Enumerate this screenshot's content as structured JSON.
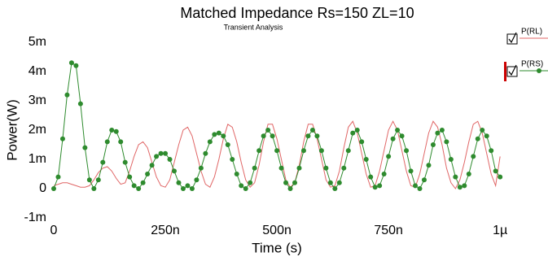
{
  "chart_data": {
    "type": "line",
    "title": "Matched Impedance Rs=150 ZL=10",
    "subtitle": "Transient Analysis",
    "x_label": "Time (s)",
    "y_label": "Power(W)",
    "xlim": [
      0,
      1.007e-06
    ],
    "ylim": [
      -0.0012,
      0.0053
    ],
    "xticks": [
      {
        "value": 0,
        "label": "0"
      },
      {
        "value": 2.5e-07,
        "label": "250n"
      },
      {
        "value": 5e-07,
        "label": "500n"
      },
      {
        "value": 7.5e-07,
        "label": "750n"
      },
      {
        "value": 1e-06,
        "label": "1µ"
      }
    ],
    "yticks": [
      {
        "value": -0.001,
        "label": "-1m"
      },
      {
        "value": 0,
        "label": "0"
      },
      {
        "value": 0.001,
        "label": "1m"
      },
      {
        "value": 0.002,
        "label": "2m"
      },
      {
        "value": 0.003,
        "label": "3m"
      },
      {
        "value": 0.004,
        "label": "4m"
      },
      {
        "value": 0.005,
        "label": "5m"
      }
    ],
    "grid": false,
    "legend": "right",
    "x": [
      0,
      1e-08,
      2e-08,
      3e-08,
      4e-08,
      5e-08,
      6e-08,
      7e-08,
      8e-08,
      9e-08,
      1e-07,
      1.1e-07,
      1.2e-07,
      1.3e-07,
      1.4e-07,
      1.5e-07,
      1.6e-07,
      1.7e-07,
      1.8e-07,
      1.9e-07,
      2e-07,
      2.1e-07,
      2.2e-07,
      2.3e-07,
      2.4e-07,
      2.5e-07,
      2.6e-07,
      2.7e-07,
      2.8e-07,
      2.9e-07,
      3e-07,
      3.1e-07,
      3.2e-07,
      3.3e-07,
      3.4e-07,
      3.5e-07,
      3.6e-07,
      3.7e-07,
      3.8e-07,
      3.9e-07,
      4e-07,
      4.1e-07,
      4.2e-07,
      4.3e-07,
      4.4e-07,
      4.5e-07,
      4.6e-07,
      4.7e-07,
      4.8e-07,
      4.9e-07,
      5e-07,
      5.1e-07,
      5.2e-07,
      5.3e-07,
      5.4e-07,
      5.5e-07,
      5.6e-07,
      5.7e-07,
      5.8e-07,
      5.9e-07,
      6e-07,
      6.1e-07,
      6.2e-07,
      6.3e-07,
      6.4e-07,
      6.5e-07,
      6.6e-07,
      6.7e-07,
      6.8e-07,
      6.9e-07,
      7e-07,
      7.1e-07,
      7.2e-07,
      7.3e-07,
      7.4e-07,
      7.5e-07,
      7.6e-07,
      7.7e-07,
      7.8e-07,
      7.9e-07,
      8e-07,
      8.1e-07,
      8.2e-07,
      8.3e-07,
      8.4e-07,
      8.5e-07,
      8.6e-07,
      8.7e-07,
      8.8e-07,
      8.9e-07,
      9e-07,
      9.1e-07,
      9.2e-07,
      9.3e-07,
      9.4e-07,
      9.5e-07,
      9.6e-07,
      9.7e-07,
      9.8e-07,
      9.9e-07,
      1e-06
    ],
    "series": [
      {
        "name": "P(RL)",
        "color": "#e06666",
        "values": [
          0.0001,
          0.00015,
          0.0002,
          0.0002,
          0.00015,
          0.0001,
          5e-05,
          5e-05,
          0.0001,
          0.0003,
          0.00055,
          0.0007,
          0.00075,
          0.0006,
          0.00035,
          0.00015,
          0.0002,
          0.0006,
          0.0011,
          0.0015,
          0.0016,
          0.0014,
          0.0009,
          0.0004,
          0.0001,
          5e-05,
          0.0003,
          0.0009,
          0.0015,
          0.002,
          0.0021,
          0.0018,
          0.0012,
          0.0006,
          0.00015,
          5e-05,
          0.0004,
          0.001,
          0.0017,
          0.0022,
          0.0021,
          0.0016,
          0.0009,
          0.0003,
          5e-05,
          0.0002,
          0.0008,
          0.0016,
          0.0022,
          0.0022,
          0.0017,
          0.001,
          0.0003,
          5e-05,
          0.0002,
          0.0008,
          0.0016,
          0.0022,
          0.0022,
          0.0017,
          0.001,
          0.0003,
          5e-05,
          0.0001,
          0.0006,
          0.0014,
          0.0021,
          0.0023,
          0.0019,
          0.0012,
          0.0005,
          5e-05,
          0.0001,
          0.0006,
          0.0013,
          0.002,
          0.0023,
          0.002,
          0.0013,
          0.0006,
          0.0001,
          5e-05,
          0.0005,
          0.0012,
          0.0019,
          0.0023,
          0.0021,
          0.0015,
          0.0007,
          0.0002,
          0,
          0.0003,
          0.0009,
          0.0016,
          0.0022,
          0.0023,
          0.0019,
          0.0012,
          0.0005,
          0.0001,
          0.0011
        ]
      },
      {
        "name": "P(RS)",
        "color": "#2e8b2e",
        "marker": "circle",
        "values": [
          0,
          0.0004,
          0.0017,
          0.0032,
          0.0043,
          0.0042,
          0.0029,
          0.0014,
          0.0003,
          0,
          0.0003,
          0.0009,
          0.0016,
          0.002,
          0.00195,
          0.0016,
          0.0009,
          0.0004,
          0.0001,
          0,
          0.0002,
          0.0005,
          0.0008,
          0.0011,
          0.0012,
          0.0012,
          0.001,
          0.0006,
          0.0002,
          0,
          0.0001,
          0,
          0.0003,
          0.0007,
          0.0012,
          0.0016,
          0.00185,
          0.0019,
          0.0018,
          0.0015,
          0.001,
          0.0005,
          0.0001,
          0,
          0.0002,
          0.0007,
          0.0013,
          0.0018,
          0.002,
          0.0018,
          0.0013,
          0.0007,
          0.0002,
          0,
          0.0002,
          0.0007,
          0.0013,
          0.0018,
          0.002,
          0.0018,
          0.0013,
          0.0007,
          0.0002,
          0,
          0.0002,
          0.0007,
          0.0013,
          0.0019,
          0.002,
          0.0016,
          0.001,
          0.0004,
          5e-05,
          0.0001,
          0.0005,
          0.0011,
          0.0017,
          0.002,
          0.0018,
          0.0013,
          0.0006,
          0.0001,
          0,
          0.0003,
          0.0008,
          0.0015,
          0.0019,
          0.002,
          0.0016,
          0.001,
          0.0004,
          5e-05,
          0.0001,
          0.0005,
          0.0011,
          0.0017,
          0.002,
          0.0018,
          0.0013,
          0.0006,
          0.0004
        ]
      }
    ]
  }
}
